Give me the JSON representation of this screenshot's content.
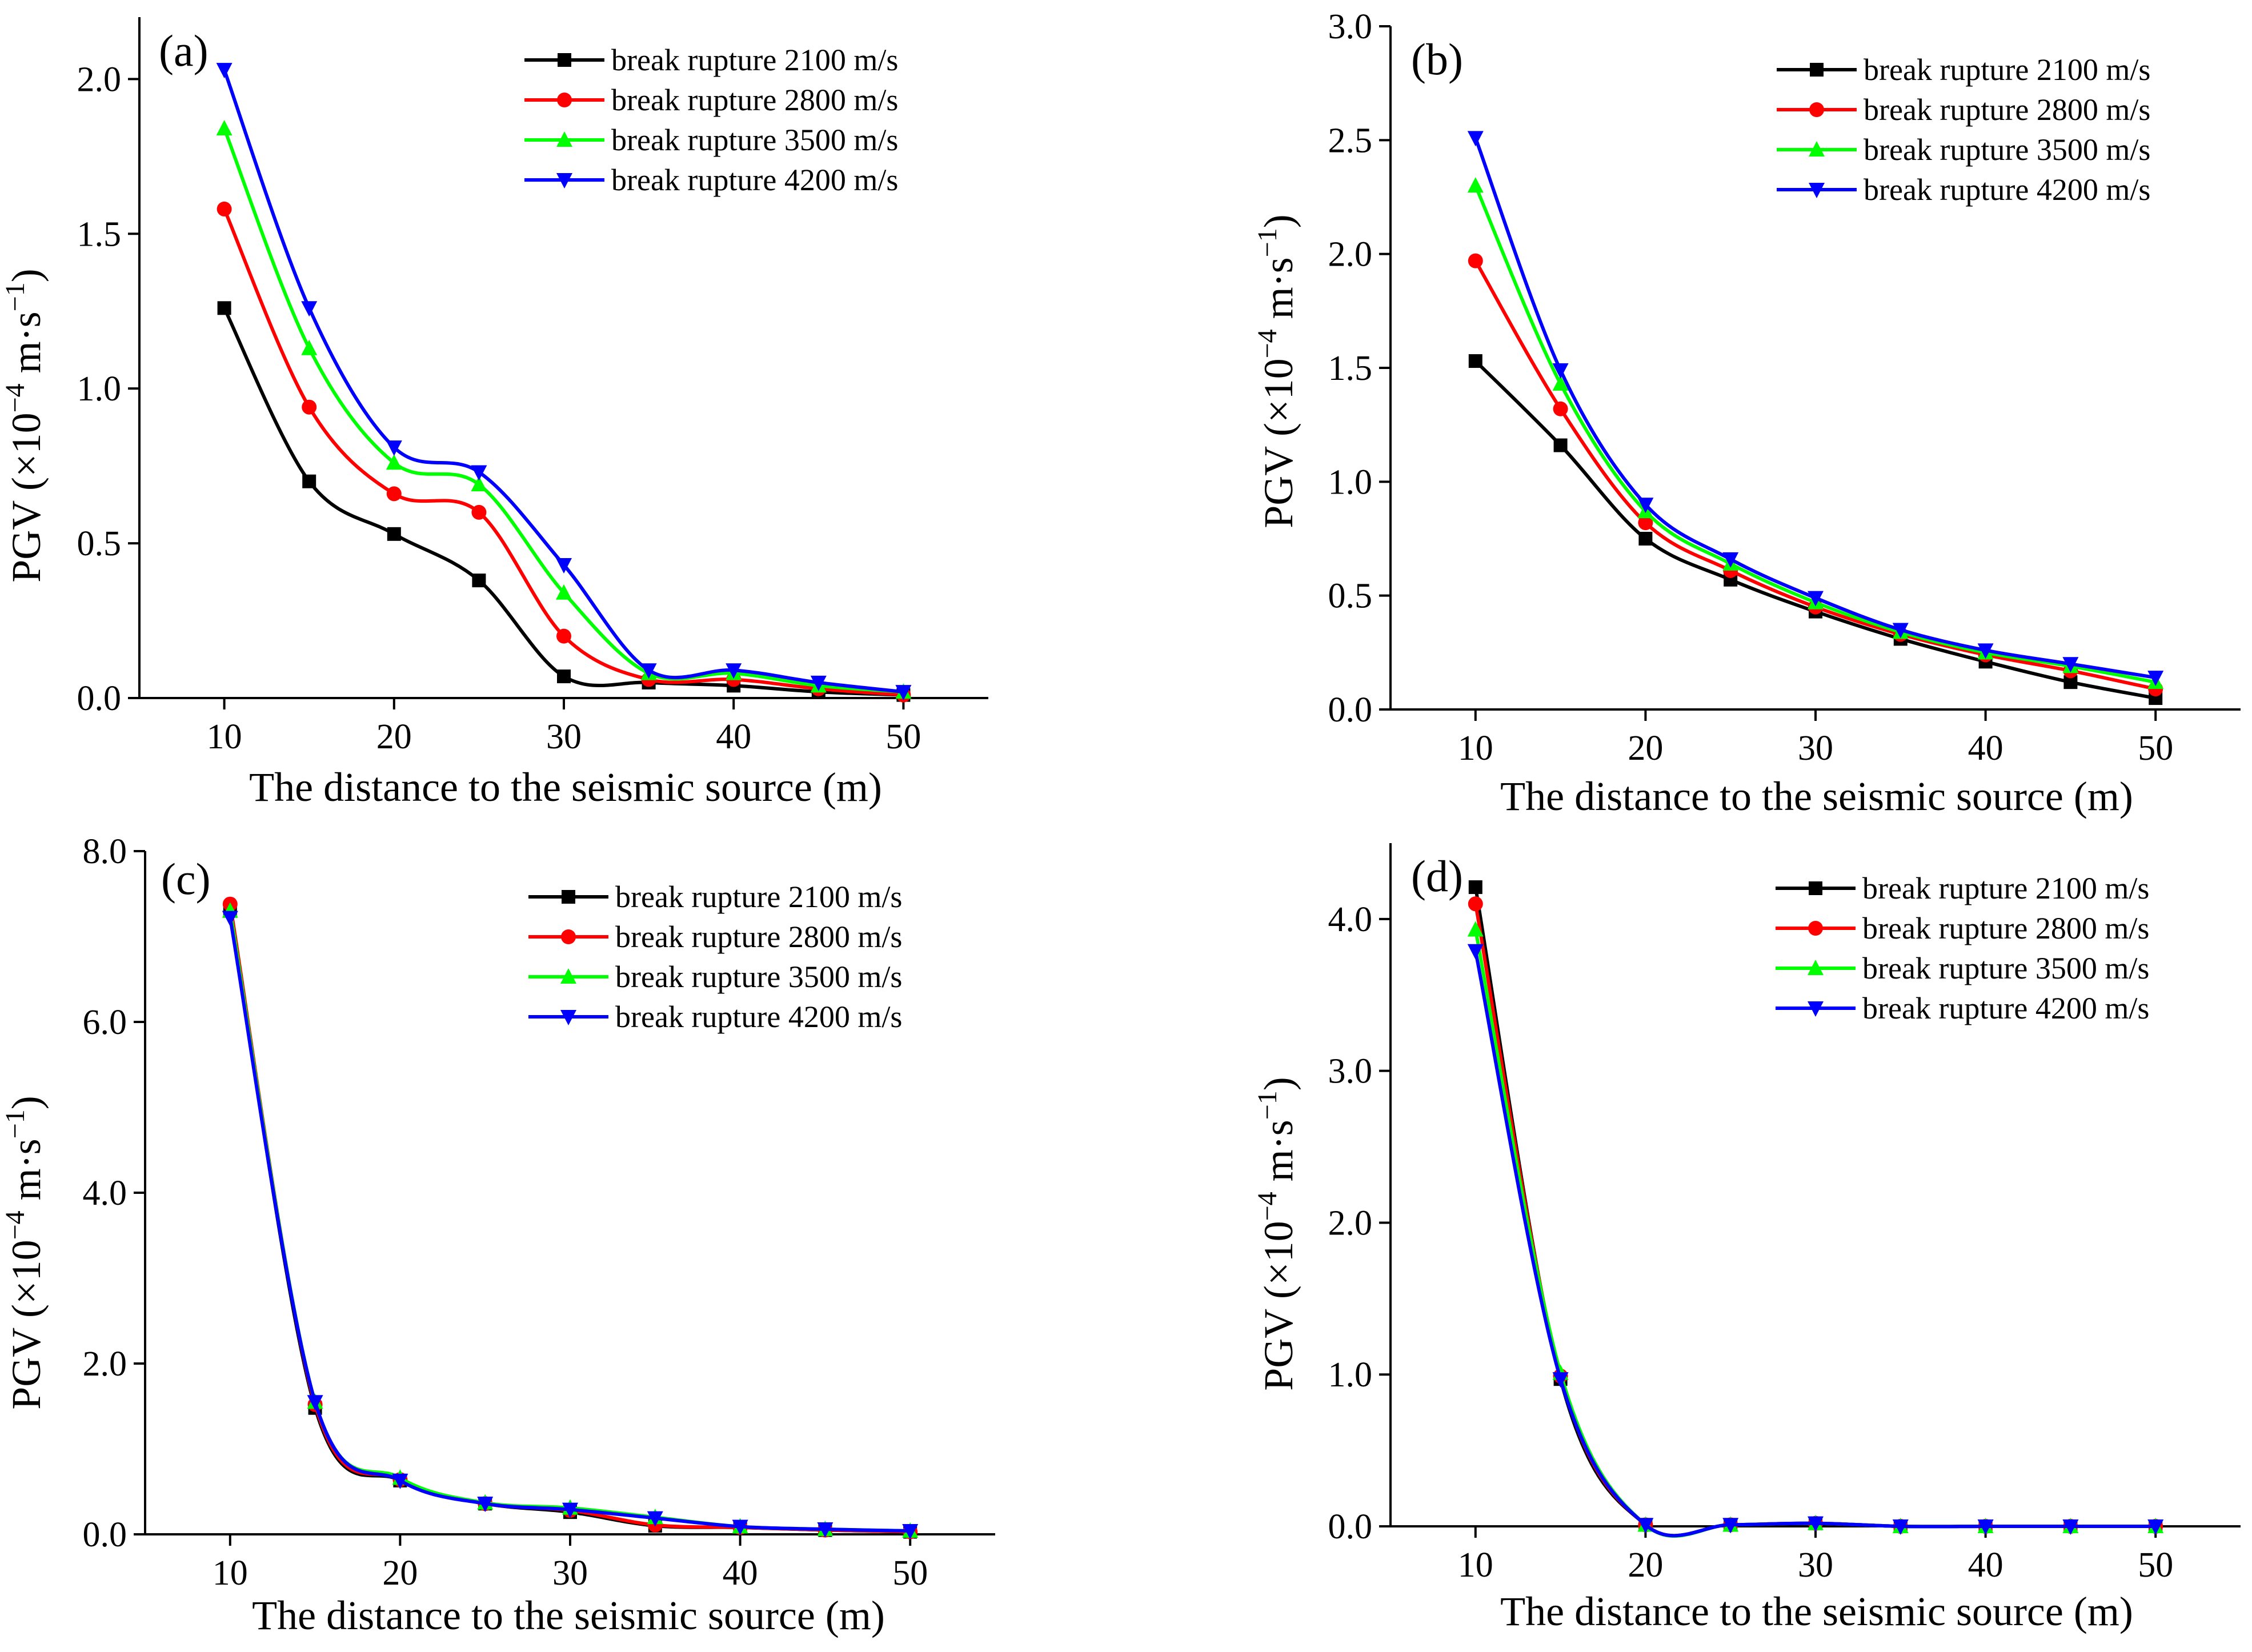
{
  "figure": {
    "series_names": [
      "break rupture 2100 m/s",
      "break rupture 2800 m/s",
      "break rupture 3500 m/s",
      "break rupture 4200 m/s"
    ],
    "series_colors": [
      "#000000",
      "#ff0000",
      "#00ff00",
      "#0000ff"
    ],
    "series_markers": [
      "square",
      "circle",
      "triangle-up",
      "triangle-down"
    ]
  },
  "chart_data": [
    {
      "type": "line",
      "panel_label": "(a)",
      "xlabel": "The distance to the seismic source (m)",
      "ylabel_text": "PGV (×10",
      "ylabel_exp": "−4",
      "ylabel_unit": " m·s",
      "ylabel_unit_exp": "−1",
      "ylabel_close": ")",
      "x": [
        10,
        15,
        20,
        25,
        30,
        35,
        40,
        45,
        50
      ],
      "xlim": [
        5,
        55
      ],
      "ylim": [
        0,
        2.2
      ],
      "xticks": [
        10,
        20,
        30,
        40,
        50
      ],
      "xtick_labels": [
        "10",
        "20",
        "30",
        "40",
        "50"
      ],
      "yticks": [
        0,
        0.5,
        1.0,
        1.5,
        2.0
      ],
      "ytick_labels": [
        "0.0",
        "0.5",
        "1.0",
        "1.5",
        "2.0"
      ],
      "legend_position": "top-right",
      "series": [
        {
          "name": "break rupture 2100 m/s",
          "values": [
            1.26,
            0.7,
            0.53,
            0.38,
            0.07,
            0.05,
            0.04,
            0.02,
            0.01
          ]
        },
        {
          "name": "break rupture 2800 m/s",
          "values": [
            1.58,
            0.94,
            0.66,
            0.6,
            0.2,
            0.06,
            0.06,
            0.03,
            0.01
          ]
        },
        {
          "name": "break rupture 3500 m/s",
          "values": [
            1.84,
            1.13,
            0.76,
            0.69,
            0.34,
            0.08,
            0.08,
            0.04,
            0.02
          ]
        },
        {
          "name": "break rupture 4200 m/s",
          "values": [
            2.03,
            1.26,
            0.81,
            0.73,
            0.43,
            0.09,
            0.09,
            0.05,
            0.02
          ]
        }
      ]
    },
    {
      "type": "line",
      "panel_label": "(b)",
      "xlabel": "The distance to the seismic source (m)",
      "ylabel_text": "PGV (×10",
      "ylabel_exp": "−4",
      "ylabel_unit": " m·s",
      "ylabel_unit_exp": "−1",
      "ylabel_close": ")",
      "x": [
        10,
        15,
        20,
        25,
        30,
        35,
        40,
        45,
        50
      ],
      "xlim": [
        5,
        55
      ],
      "ylim": [
        0,
        3.0
      ],
      "xticks": [
        10,
        20,
        30,
        40,
        50
      ],
      "xtick_labels": [
        "10",
        "20",
        "30",
        "40",
        "50"
      ],
      "yticks": [
        0,
        0.5,
        1.0,
        1.5,
        2.0,
        2.5,
        3.0
      ],
      "ytick_labels": [
        "0.0",
        "0.5",
        "1.0",
        "1.5",
        "2.0",
        "2.5",
        "3.0"
      ],
      "legend_position": "top-right",
      "series": [
        {
          "name": "break rupture 2100 m/s",
          "values": [
            1.53,
            1.16,
            0.75,
            0.57,
            0.43,
            0.31,
            0.21,
            0.12,
            0.05
          ]
        },
        {
          "name": "break rupture 2800 m/s",
          "values": [
            1.97,
            1.32,
            0.82,
            0.61,
            0.45,
            0.33,
            0.24,
            0.17,
            0.09
          ]
        },
        {
          "name": "break rupture 3500 m/s",
          "values": [
            2.3,
            1.43,
            0.87,
            0.64,
            0.47,
            0.34,
            0.25,
            0.19,
            0.12
          ]
        },
        {
          "name": "break rupture 4200 m/s",
          "values": [
            2.51,
            1.49,
            0.9,
            0.66,
            0.49,
            0.35,
            0.26,
            0.2,
            0.14
          ]
        }
      ]
    },
    {
      "type": "line",
      "panel_label": "(c)",
      "xlabel": "The distance to the seismic source (m)",
      "ylabel_text": "PGV (×10",
      "ylabel_exp": "−4",
      "ylabel_unit": " m·s",
      "ylabel_unit_exp": "−1",
      "ylabel_close": ")",
      "x": [
        10,
        15,
        20,
        25,
        30,
        35,
        40,
        45,
        50
      ],
      "xlim": [
        5,
        55
      ],
      "ylim": [
        0,
        8.0
      ],
      "xticks": [
        10,
        20,
        30,
        40,
        50
      ],
      "xtick_labels": [
        "10",
        "20",
        "30",
        "40",
        "50"
      ],
      "yticks": [
        0,
        2.0,
        4.0,
        6.0,
        8.0
      ],
      "ytick_labels": [
        "0.0",
        "2.0",
        "4.0",
        "6.0",
        "8.0"
      ],
      "legend_position": "top-right",
      "series": [
        {
          "name": "break rupture 2100 m/s",
          "values": [
            7.3,
            1.48,
            0.63,
            0.36,
            0.26,
            0.1,
            0.08,
            0.05,
            0.03
          ]
        },
        {
          "name": "break rupture 2800 m/s",
          "values": [
            7.38,
            1.52,
            0.64,
            0.36,
            0.28,
            0.11,
            0.08,
            0.05,
            0.03
          ]
        },
        {
          "name": "break rupture 3500 m/s",
          "values": [
            7.3,
            1.55,
            0.66,
            0.37,
            0.31,
            0.2,
            0.09,
            0.06,
            0.04
          ]
        },
        {
          "name": "break rupture 4200 m/s",
          "values": [
            7.22,
            1.55,
            0.63,
            0.36,
            0.29,
            0.19,
            0.09,
            0.06,
            0.04
          ]
        }
      ]
    },
    {
      "type": "line",
      "panel_label": "(d)",
      "xlabel": "The distance to the seismic source (m)",
      "ylabel_text": "PGV (×10",
      "ylabel_exp": "−4",
      "ylabel_unit": " m·s",
      "ylabel_unit_exp": "−1",
      "ylabel_close": ")",
      "x": [
        10,
        15,
        20,
        25,
        30,
        35,
        40,
        45,
        50
      ],
      "xlim": [
        5,
        55
      ],
      "ylim": [
        0,
        4.5
      ],
      "xticks": [
        10,
        20,
        30,
        40,
        50
      ],
      "xtick_labels": [
        "10",
        "20",
        "30",
        "40",
        "50"
      ],
      "yticks": [
        0,
        1.0,
        2.0,
        3.0,
        4.0
      ],
      "ytick_labels": [
        "0.0",
        "1.0",
        "2.0",
        "3.0",
        "4.0"
      ],
      "legend_position": "top-right",
      "series": [
        {
          "name": "break rupture 2100 m/s",
          "values": [
            4.21,
            0.97,
            0.01,
            0.01,
            0.02,
            0.0,
            0.0,
            0.0,
            0.0
          ]
        },
        {
          "name": "break rupture 2800 m/s",
          "values": [
            4.1,
            0.99,
            0.01,
            0.01,
            0.02,
            0.0,
            0.0,
            0.0,
            0.0
          ]
        },
        {
          "name": "break rupture 3500 m/s",
          "values": [
            3.93,
            1.01,
            0.01,
            0.01,
            0.02,
            0.0,
            0.0,
            0.0,
            0.0
          ]
        },
        {
          "name": "break rupture 4200 m/s",
          "values": [
            3.79,
            0.97,
            0.01,
            0.01,
            0.02,
            0.0,
            0.0,
            0.0,
            0.0
          ]
        }
      ]
    }
  ]
}
